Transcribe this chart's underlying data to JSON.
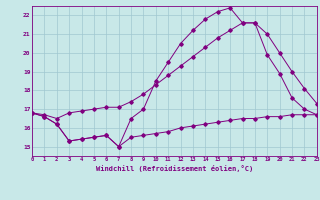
{
  "xlabel": "Windchill (Refroidissement éolien,°C)",
  "xlim": [
    0,
    23
  ],
  "ylim": [
    14.5,
    22.5
  ],
  "yticks": [
    15,
    16,
    17,
    18,
    19,
    20,
    21,
    22
  ],
  "xticks": [
    0,
    1,
    2,
    3,
    4,
    5,
    6,
    7,
    8,
    9,
    10,
    11,
    12,
    13,
    14,
    15,
    16,
    17,
    18,
    19,
    20,
    21,
    22,
    23
  ],
  "bg_color": "#c8e8e8",
  "grid_color": "#a0c8d0",
  "line_color": "#800080",
  "series1_x": [
    0,
    1,
    2,
    3,
    4,
    5,
    6,
    7,
    8,
    9,
    10,
    11,
    12,
    13,
    14,
    15,
    16,
    17,
    18,
    19,
    20,
    21,
    22,
    23
  ],
  "series1_y": [
    16.8,
    16.6,
    16.2,
    15.3,
    15.4,
    15.5,
    15.6,
    15.0,
    15.5,
    15.6,
    15.7,
    15.8,
    16.0,
    16.1,
    16.2,
    16.3,
    16.4,
    16.5,
    16.5,
    16.6,
    16.6,
    16.7,
    16.7,
    16.7
  ],
  "series2_x": [
    0,
    1,
    2,
    3,
    4,
    5,
    6,
    7,
    8,
    9,
    10,
    11,
    12,
    13,
    14,
    15,
    16,
    17,
    18,
    19,
    20,
    21,
    22,
    23
  ],
  "series2_y": [
    16.8,
    16.6,
    16.2,
    15.3,
    15.4,
    15.5,
    15.6,
    15.0,
    16.5,
    17.0,
    18.5,
    19.5,
    20.5,
    21.2,
    21.8,
    22.2,
    22.4,
    21.6,
    21.6,
    19.9,
    18.9,
    17.6,
    17.0,
    16.7
  ],
  "series3_x": [
    0,
    1,
    2,
    3,
    4,
    5,
    6,
    7,
    8,
    9,
    10,
    11,
    12,
    13,
    14,
    15,
    16,
    17,
    18,
    19,
    20,
    21,
    22,
    23
  ],
  "series3_y": [
    16.8,
    16.7,
    16.5,
    16.8,
    16.9,
    17.0,
    17.1,
    17.1,
    17.4,
    17.8,
    18.3,
    18.8,
    19.3,
    19.8,
    20.3,
    20.8,
    21.2,
    21.6,
    21.6,
    21.0,
    20.0,
    19.0,
    18.1,
    17.3
  ]
}
